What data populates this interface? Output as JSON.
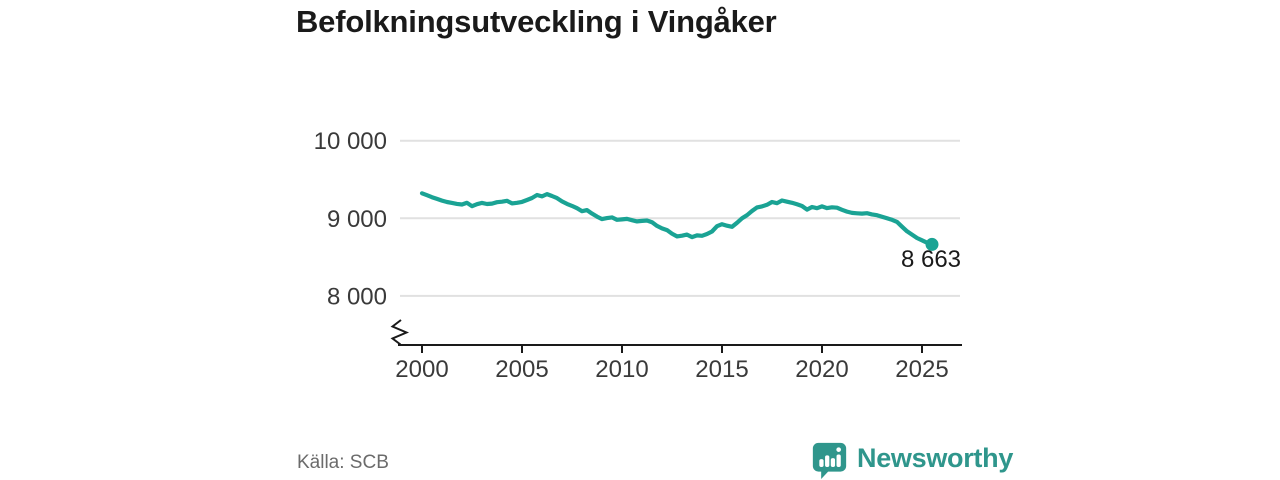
{
  "title": "Befolkningsutveckling i Vingåker",
  "footer": {
    "source": "Källa: SCB"
  },
  "brand": {
    "name": "Newsworthy",
    "icon": "newsworthy-speech-bubble-bar-chart"
  },
  "colors": {
    "line": "#1AA394",
    "brand": "#2F968C",
    "grid": "#E1E1E1",
    "axis": "#1A1A1A",
    "title_text": "#1A1A1A",
    "tick_text": "#3A3A3A",
    "muted_text": "#6B6B6B"
  },
  "chart_data": {
    "type": "line",
    "title": "Befolkningsutveckling i Vingåker",
    "source": "Källa: SCB",
    "x_unit": "year (quarterly observations)",
    "x_start": 2000,
    "x_step": 0.25,
    "x_end": 2025.5,
    "values": [
      9322,
      9298,
      9272,
      9250,
      9228,
      9210,
      9198,
      9186,
      9178,
      9200,
      9156,
      9182,
      9198,
      9184,
      9190,
      9208,
      9214,
      9226,
      9192,
      9200,
      9212,
      9236,
      9262,
      9300,
      9282,
      9312,
      9288,
      9260,
      9218,
      9186,
      9160,
      9130,
      9092,
      9106,
      9060,
      9022,
      8990,
      9002,
      9012,
      8980,
      8986,
      8992,
      8976,
      8960,
      8966,
      8972,
      8950,
      8902,
      8870,
      8848,
      8802,
      8766,
      8776,
      8790,
      8758,
      8780,
      8774,
      8798,
      8830,
      8898,
      8924,
      8904,
      8890,
      8942,
      9000,
      9040,
      9094,
      9140,
      9154,
      9174,
      9210,
      9194,
      9230,
      9214,
      9200,
      9180,
      9158,
      9112,
      9146,
      9130,
      9154,
      9132,
      9142,
      9136,
      9110,
      9086,
      9070,
      9064,
      9060,
      9066,
      9050,
      9040,
      9020,
      9000,
      8980,
      8954,
      8892,
      8832,
      8790,
      8746,
      8716,
      8686,
      8663
    ],
    "end_point": {
      "x": 2025.5,
      "value": 8663,
      "label": "8 663"
    },
    "xticks": [
      2000,
      2005,
      2010,
      2015,
      2020,
      2025
    ],
    "yticks": [
      {
        "value": 10000,
        "label": "10 000"
      },
      {
        "value": 9000,
        "label": "9 000"
      },
      {
        "value": 8000,
        "label": "8 000"
      }
    ],
    "ylim_visible": [
      8000,
      10000
    ],
    "axis_break": true,
    "grid": "horizontal",
    "legend": "none",
    "line_color": "#1AA394"
  }
}
